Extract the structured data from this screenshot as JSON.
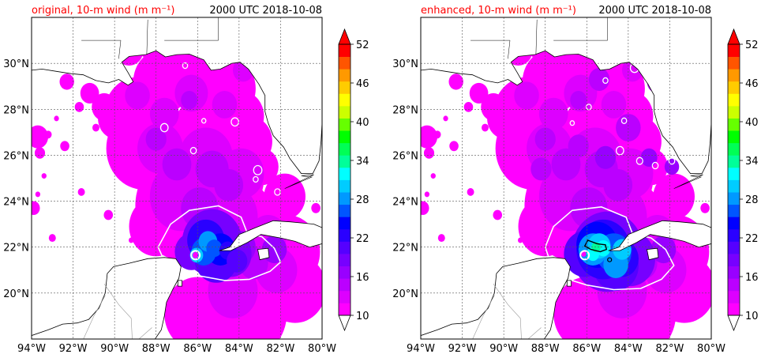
{
  "panels": [
    {
      "id": "original",
      "title_left": "original, 10-m wind (m m⁻¹)",
      "title_right": "2000 UTC 2018-10-08",
      "core_contours": "white"
    },
    {
      "id": "enhanced",
      "title_left": "enhanced, 10-m wind (m m⁻¹)",
      "title_right": "2000 UTC 2018-10-08",
      "core_contours": "black"
    }
  ],
  "map": {
    "lon_range": [
      -94,
      -80
    ],
    "lat_range": [
      18,
      32
    ],
    "lon_labels": [
      "94°W",
      "92°W",
      "90°W",
      "88°W",
      "86°W",
      "84°W",
      "82°W",
      "80°W"
    ],
    "lat_labels": [
      "20°N",
      "22°N",
      "24°N",
      "26°N",
      "28°N",
      "30°N"
    ],
    "grid": true
  },
  "colorbar": {
    "tick_labels": [
      "10",
      "16",
      "22",
      "28",
      "34",
      "40",
      "46",
      "52"
    ],
    "levels": [
      10,
      12,
      14,
      16,
      18,
      20,
      22,
      24,
      26,
      28,
      30,
      32,
      34,
      36,
      38,
      40,
      42,
      44,
      46,
      48,
      50,
      52
    ],
    "colors": [
      "#ff00ff",
      "#dd00ff",
      "#bb00ff",
      "#9900ff",
      "#7700ff",
      "#5500ff",
      "#2a00ff",
      "#0000ff",
      "#0055ff",
      "#0099ff",
      "#00ccff",
      "#00ffff",
      "#00ff99",
      "#00ff55",
      "#00ff00",
      "#66ff00",
      "#ccff00",
      "#ffff00",
      "#ffcc00",
      "#ff9900",
      "#ff5500",
      "#ff0000"
    ],
    "extend_min_color": "#ffffff",
    "extend_max_color": "#ff0000"
  },
  "colors": {
    "title_left": "#ff0000",
    "land_outline": "#000000",
    "grid": "#555555"
  }
}
